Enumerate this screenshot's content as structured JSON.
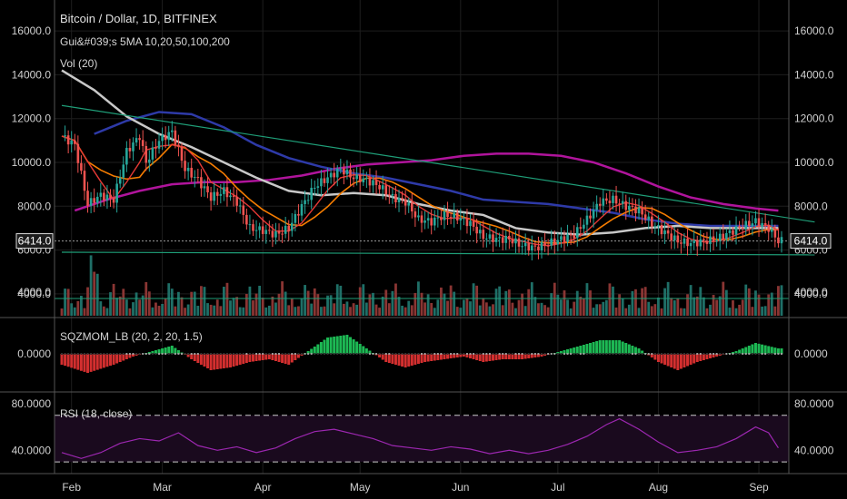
{
  "header": {
    "title": "Bitcoin / Dollar, 1D, BITFINEX",
    "indicator_ma": "Gui&#039;s 5MA 10,20,50,100,200",
    "indicator_vol": "Vol (20)"
  },
  "panes": {
    "sqz_label": "SQZMOM_LB (20, 2, 20, 1.5)",
    "rsi_label": "RSI (18, close)"
  },
  "colors": {
    "background": "#000000",
    "grid": "#1e1e1e",
    "up": "#26a69a",
    "down": "#ef5350",
    "ma10": "#e53935",
    "ma20": "#f57c00",
    "ma50": "#c8c8c8",
    "ma100": "#2e3aa8",
    "ma200": "#b0149c",
    "trend": "#1f9e78",
    "rsi": "#9c27b0"
  },
  "chart_data": {
    "type": "candlestick",
    "price_axis": {
      "ticks": [
        "16000.0",
        "14000.0",
        "12000.0",
        "10000.0",
        "8000.0",
        "6000.0",
        "4000.0"
      ],
      "ylim": [
        3000,
        17000
      ]
    },
    "last_price": "6414.0",
    "x_axis": {
      "labels": [
        "Feb",
        "Mar",
        "Apr",
        "May",
        "Jun",
        "Jul",
        "Aug",
        "Sep"
      ],
      "label_day_index": [
        3,
        31,
        62,
        92,
        123,
        153,
        184,
        215
      ],
      "range_days": [
        0,
        222
      ]
    },
    "price_series": [
      {
        "day": 0,
        "close": 11200
      },
      {
        "day": 4,
        "close": 10800
      },
      {
        "day": 8,
        "close": 8100
      },
      {
        "day": 12,
        "close": 8500
      },
      {
        "day": 16,
        "close": 8300
      },
      {
        "day": 20,
        "close": 10500
      },
      {
        "day": 24,
        "close": 11200
      },
      {
        "day": 26,
        "close": 10000
      },
      {
        "day": 30,
        "close": 11000
      },
      {
        "day": 34,
        "close": 11400
      },
      {
        "day": 38,
        "close": 9700
      },
      {
        "day": 42,
        "close": 9200
      },
      {
        "day": 46,
        "close": 8400
      },
      {
        "day": 50,
        "close": 8700
      },
      {
        "day": 54,
        "close": 8200
      },
      {
        "day": 58,
        "close": 7000
      },
      {
        "day": 62,
        "close": 6900
      },
      {
        "day": 66,
        "close": 6700
      },
      {
        "day": 70,
        "close": 7000
      },
      {
        "day": 74,
        "close": 8000
      },
      {
        "day": 78,
        "close": 8900
      },
      {
        "day": 82,
        "close": 9300
      },
      {
        "day": 86,
        "close": 9700
      },
      {
        "day": 90,
        "close": 9300
      },
      {
        "day": 94,
        "close": 9200
      },
      {
        "day": 98,
        "close": 8900
      },
      {
        "day": 102,
        "close": 8400
      },
      {
        "day": 106,
        "close": 8200
      },
      {
        "day": 110,
        "close": 7400
      },
      {
        "day": 114,
        "close": 7300
      },
      {
        "day": 118,
        "close": 7600
      },
      {
        "day": 122,
        "close": 7500
      },
      {
        "day": 126,
        "close": 7200
      },
      {
        "day": 130,
        "close": 6600
      },
      {
        "day": 134,
        "close": 6500
      },
      {
        "day": 138,
        "close": 6500
      },
      {
        "day": 142,
        "close": 6200
      },
      {
        "day": 146,
        "close": 6100
      },
      {
        "day": 150,
        "close": 6300
      },
      {
        "day": 154,
        "close": 6500
      },
      {
        "day": 158,
        "close": 6700
      },
      {
        "day": 162,
        "close": 7400
      },
      {
        "day": 166,
        "close": 8200
      },
      {
        "day": 170,
        "close": 8300
      },
      {
        "day": 174,
        "close": 8000
      },
      {
        "day": 178,
        "close": 7800
      },
      {
        "day": 182,
        "close": 7200
      },
      {
        "day": 186,
        "close": 6800
      },
      {
        "day": 190,
        "close": 6400
      },
      {
        "day": 194,
        "close": 6300
      },
      {
        "day": 198,
        "close": 6400
      },
      {
        "day": 202,
        "close": 6500
      },
      {
        "day": 206,
        "close": 6800
      },
      {
        "day": 210,
        "close": 7100
      },
      {
        "day": 214,
        "close": 7300
      },
      {
        "day": 218,
        "close": 7000
      },
      {
        "day": 221,
        "close": 6414
      }
    ],
    "ma50": [
      {
        "day": 0,
        "v": 14200
      },
      {
        "day": 10,
        "v": 13300
      },
      {
        "day": 20,
        "v": 12100
      },
      {
        "day": 30,
        "v": 11300
      },
      {
        "day": 40,
        "v": 10700
      },
      {
        "day": 50,
        "v": 10000
      },
      {
        "day": 60,
        "v": 9300
      },
      {
        "day": 70,
        "v": 8700
      },
      {
        "day": 80,
        "v": 8500
      },
      {
        "day": 90,
        "v": 8600
      },
      {
        "day": 100,
        "v": 8500
      },
      {
        "day": 110,
        "v": 8100
      },
      {
        "day": 120,
        "v": 7800
      },
      {
        "day": 130,
        "v": 7600
      },
      {
        "day": 140,
        "v": 7000
      },
      {
        "day": 150,
        "v": 6800
      },
      {
        "day": 160,
        "v": 6700
      },
      {
        "day": 170,
        "v": 6800
      },
      {
        "day": 180,
        "v": 7000
      },
      {
        "day": 190,
        "v": 7100
      },
      {
        "day": 200,
        "v": 7000
      },
      {
        "day": 210,
        "v": 7000
      },
      {
        "day": 221,
        "v": 7000
      }
    ],
    "ma100": [
      {
        "day": 10,
        "v": 11300
      },
      {
        "day": 20,
        "v": 11900
      },
      {
        "day": 30,
        "v": 12300
      },
      {
        "day": 40,
        "v": 12200
      },
      {
        "day": 50,
        "v": 11600
      },
      {
        "day": 60,
        "v": 10800
      },
      {
        "day": 70,
        "v": 10200
      },
      {
        "day": 80,
        "v": 9800
      },
      {
        "day": 90,
        "v": 9500
      },
      {
        "day": 100,
        "v": 9300
      },
      {
        "day": 110,
        "v": 9000
      },
      {
        "day": 120,
        "v": 8700
      },
      {
        "day": 130,
        "v": 8300
      },
      {
        "day": 140,
        "v": 8200
      },
      {
        "day": 150,
        "v": 8100
      },
      {
        "day": 160,
        "v": 7900
      },
      {
        "day": 170,
        "v": 7700
      },
      {
        "day": 180,
        "v": 7400
      },
      {
        "day": 190,
        "v": 7200
      },
      {
        "day": 200,
        "v": 7100
      },
      {
        "day": 210,
        "v": 7100
      },
      {
        "day": 221,
        "v": 7100
      }
    ],
    "ma200": [
      {
        "day": 4,
        "v": 7800
      },
      {
        "day": 14,
        "v": 8300
      },
      {
        "day": 24,
        "v": 8700
      },
      {
        "day": 34,
        "v": 9000
      },
      {
        "day": 44,
        "v": 9100
      },
      {
        "day": 54,
        "v": 9100
      },
      {
        "day": 64,
        "v": 9200
      },
      {
        "day": 74,
        "v": 9400
      },
      {
        "day": 84,
        "v": 9700
      },
      {
        "day": 94,
        "v": 9900
      },
      {
        "day": 104,
        "v": 10000
      },
      {
        "day": 114,
        "v": 10100
      },
      {
        "day": 124,
        "v": 10300
      },
      {
        "day": 134,
        "v": 10400
      },
      {
        "day": 144,
        "v": 10400
      },
      {
        "day": 154,
        "v": 10300
      },
      {
        "day": 164,
        "v": 10000
      },
      {
        "day": 174,
        "v": 9500
      },
      {
        "day": 184,
        "v": 8900
      },
      {
        "day": 194,
        "v": 8400
      },
      {
        "day": 204,
        "v": 8100
      },
      {
        "day": 214,
        "v": 7900
      },
      {
        "day": 221,
        "v": 7800
      }
    ],
    "trendlines": [
      {
        "from": {
          "day": 0,
          "v": 12600
        },
        "to": {
          "day": 221,
          "v": 7400
        }
      },
      {
        "from": {
          "day": 0,
          "v": 5900
        },
        "to": {
          "day": 221,
          "v": 5900
        }
      }
    ],
    "volume_axis": {
      "ticks": [
        "4000.0"
      ]
    },
    "sqzmom": {
      "ticks": [
        "0.0000"
      ],
      "ylim": [
        -1,
        1
      ],
      "values": [
        {
          "day": 0,
          "v": -0.4
        },
        {
          "day": 8,
          "v": -0.7
        },
        {
          "day": 16,
          "v": -0.4
        },
        {
          "day": 22,
          "v": -0.1
        },
        {
          "day": 28,
          "v": 0.1
        },
        {
          "day": 34,
          "v": 0.3
        },
        {
          "day": 40,
          "v": -0.2
        },
        {
          "day": 46,
          "v": -0.6
        },
        {
          "day": 52,
          "v": -0.5
        },
        {
          "day": 58,
          "v": -0.3
        },
        {
          "day": 64,
          "v": -0.2
        },
        {
          "day": 70,
          "v": -0.4
        },
        {
          "day": 76,
          "v": 0.1
        },
        {
          "day": 82,
          "v": 0.6
        },
        {
          "day": 88,
          "v": 0.7
        },
        {
          "day": 94,
          "v": 0.2
        },
        {
          "day": 100,
          "v": -0.3
        },
        {
          "day": 106,
          "v": -0.5
        },
        {
          "day": 112,
          "v": -0.3
        },
        {
          "day": 118,
          "v": -0.2
        },
        {
          "day": 124,
          "v": -0.1
        },
        {
          "day": 130,
          "v": -0.3
        },
        {
          "day": 136,
          "v": -0.2
        },
        {
          "day": 142,
          "v": -0.2
        },
        {
          "day": 148,
          "v": -0.1
        },
        {
          "day": 154,
          "v": 0.1
        },
        {
          "day": 160,
          "v": 0.3
        },
        {
          "day": 166,
          "v": 0.5
        },
        {
          "day": 172,
          "v": 0.5
        },
        {
          "day": 178,
          "v": 0.2
        },
        {
          "day": 184,
          "v": -0.3
        },
        {
          "day": 190,
          "v": -0.6
        },
        {
          "day": 196,
          "v": -0.3
        },
        {
          "day": 202,
          "v": -0.1
        },
        {
          "day": 208,
          "v": 0.1
        },
        {
          "day": 214,
          "v": 0.4
        },
        {
          "day": 221,
          "v": 0.2
        }
      ]
    },
    "rsi": {
      "ticks": [
        "80.0000",
        "40.0000"
      ],
      "ylim": [
        20,
        90
      ],
      "bands": [
        70,
        30
      ],
      "values": [
        {
          "day": 0,
          "v": 38
        },
        {
          "day": 6,
          "v": 33
        },
        {
          "day": 12,
          "v": 38
        },
        {
          "day": 18,
          "v": 46
        },
        {
          "day": 24,
          "v": 50
        },
        {
          "day": 30,
          "v": 48
        },
        {
          "day": 36,
          "v": 55
        },
        {
          "day": 42,
          "v": 44
        },
        {
          "day": 48,
          "v": 40
        },
        {
          "day": 54,
          "v": 43
        },
        {
          "day": 60,
          "v": 38
        },
        {
          "day": 66,
          "v": 42
        },
        {
          "day": 72,
          "v": 50
        },
        {
          "day": 78,
          "v": 56
        },
        {
          "day": 84,
          "v": 58
        },
        {
          "day": 90,
          "v": 54
        },
        {
          "day": 96,
          "v": 50
        },
        {
          "day": 102,
          "v": 44
        },
        {
          "day": 108,
          "v": 42
        },
        {
          "day": 114,
          "v": 40
        },
        {
          "day": 120,
          "v": 43
        },
        {
          "day": 126,
          "v": 41
        },
        {
          "day": 132,
          "v": 37
        },
        {
          "day": 138,
          "v": 40
        },
        {
          "day": 144,
          "v": 37
        },
        {
          "day": 150,
          "v": 40
        },
        {
          "day": 156,
          "v": 45
        },
        {
          "day": 162,
          "v": 52
        },
        {
          "day": 168,
          "v": 62
        },
        {
          "day": 172,
          "v": 67
        },
        {
          "day": 178,
          "v": 58
        },
        {
          "day": 184,
          "v": 47
        },
        {
          "day": 190,
          "v": 38
        },
        {
          "day": 196,
          "v": 40
        },
        {
          "day": 202,
          "v": 43
        },
        {
          "day": 208,
          "v": 50
        },
        {
          "day": 214,
          "v": 60
        },
        {
          "day": 218,
          "v": 55
        },
        {
          "day": 221,
          "v": 42
        }
      ]
    }
  }
}
